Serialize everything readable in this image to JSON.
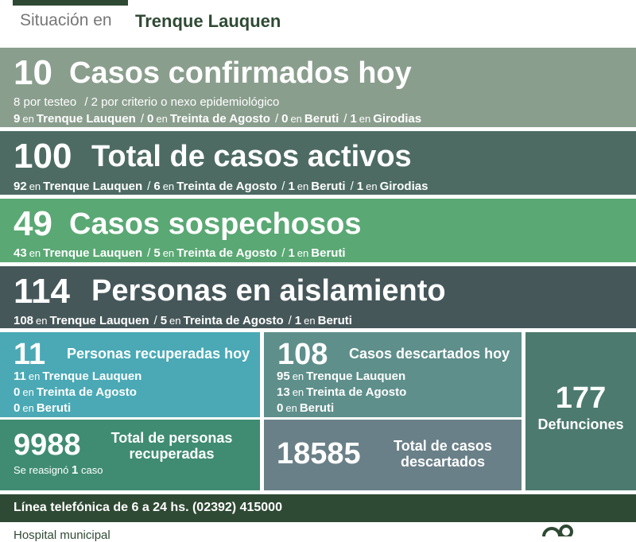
{
  "header": {
    "prefix": "Situación en",
    "place": "Trenque Lauquen"
  },
  "separator": "/",
  "prep": "en",
  "confirmed": {
    "number": 10,
    "title": "Casos confirmados hoy",
    "breakdown": [
      {
        "count": 8,
        "label": "por testeo"
      },
      {
        "count": 2,
        "label": "por criterio o nexo epidemiológico"
      }
    ],
    "places": [
      {
        "count": 9,
        "place": "Trenque Lauquen"
      },
      {
        "count": 0,
        "place": "Treinta de Agosto"
      },
      {
        "count": 0,
        "place": "Beruti"
      },
      {
        "count": 1,
        "place": "Girodias"
      }
    ]
  },
  "active": {
    "number": 100,
    "title": "Total de casos activos",
    "places": [
      {
        "count": 92,
        "place": "Trenque Lauquen"
      },
      {
        "count": 6,
        "place": "Treinta de Agosto"
      },
      {
        "count": 1,
        "place": "Beruti"
      },
      {
        "count": 1,
        "place": "Girodias"
      }
    ]
  },
  "suspected": {
    "number": 49,
    "title": "Casos sospechosos",
    "places": [
      {
        "count": 43,
        "place": "Trenque Lauquen"
      },
      {
        "count": 5,
        "place": "Treinta de Agosto"
      },
      {
        "count": 1,
        "place": "Beruti"
      }
    ]
  },
  "isolation": {
    "number": 114,
    "title": "Personas en aislamiento",
    "places": [
      {
        "count": 108,
        "place": "Trenque Lauquen"
      },
      {
        "count": 5,
        "place": "Treinta de Agosto"
      },
      {
        "count": 1,
        "place": "Beruti"
      }
    ]
  },
  "recovered_today": {
    "number": 11,
    "title": "Personas recuperadas hoy",
    "places": [
      {
        "count": 11,
        "place": "Trenque Lauquen"
      },
      {
        "count": 0,
        "place": "Treinta de Agosto"
      },
      {
        "count": 0,
        "place": "Beruti"
      }
    ]
  },
  "discarded_today": {
    "number": 108,
    "title": "Casos descartados hoy",
    "places": [
      {
        "count": 95,
        "place": "Trenque Lauquen"
      },
      {
        "count": 13,
        "place": "Treinta de Agosto"
      },
      {
        "count": 0,
        "place": "Beruti"
      }
    ]
  },
  "deaths": {
    "number": 177,
    "title": "Defunciones"
  },
  "recovered_total": {
    "number": 9988,
    "title": "Total de personas recuperadas",
    "note": {
      "prefix": "Se reasignó",
      "count": 1,
      "suffix": "caso"
    }
  },
  "discarded_total": {
    "number": 18585,
    "title": "Total de casos descartados"
  },
  "footer": {
    "phone": "Línea telefónica de 6 a 24 hs. (02392) 415000",
    "hospital": "Hospital municipal"
  }
}
